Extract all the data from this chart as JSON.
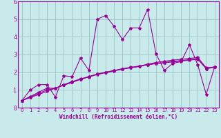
{
  "xlabel": "Windchill (Refroidissement éolien,°C)",
  "bg_color": "#c8eaea",
  "grid_color": "#a0c8c8",
  "line_color": "#990099",
  "xlim": [
    -0.5,
    23.5
  ],
  "ylim": [
    0,
    6
  ],
  "xticks": [
    0,
    1,
    2,
    3,
    4,
    5,
    6,
    7,
    8,
    9,
    10,
    11,
    12,
    13,
    14,
    15,
    16,
    17,
    18,
    19,
    20,
    21,
    22,
    23
  ],
  "yticks": [
    0,
    1,
    2,
    3,
    4,
    5,
    6
  ],
  "series": [
    [
      0.4,
      1.0,
      1.3,
      1.3,
      0.6,
      1.8,
      1.75,
      2.8,
      2.1,
      5.0,
      5.2,
      4.6,
      3.85,
      4.5,
      4.5,
      5.55,
      3.05,
      2.1,
      2.5,
      2.6,
      3.55,
      2.4,
      0.75,
      2.3
    ],
    [
      0.4,
      0.63,
      0.87,
      1.1,
      1.1,
      1.27,
      1.43,
      1.6,
      1.75,
      1.9,
      2.0,
      2.1,
      2.2,
      2.28,
      2.35,
      2.45,
      2.55,
      2.62,
      2.68,
      2.73,
      2.78,
      2.83,
      2.25,
      2.3
    ],
    [
      0.4,
      0.57,
      0.74,
      0.92,
      1.1,
      1.27,
      1.43,
      1.6,
      1.73,
      1.87,
      1.97,
      2.07,
      2.17,
      2.25,
      2.32,
      2.42,
      2.48,
      2.53,
      2.58,
      2.63,
      2.68,
      2.73,
      2.2,
      2.28
    ],
    [
      0.4,
      0.6,
      0.8,
      1.0,
      1.1,
      1.3,
      1.47,
      1.63,
      1.75,
      1.9,
      2.0,
      2.09,
      2.18,
      2.26,
      2.33,
      2.43,
      2.5,
      2.55,
      2.61,
      2.66,
      2.71,
      2.76,
      2.2,
      2.29
    ]
  ]
}
